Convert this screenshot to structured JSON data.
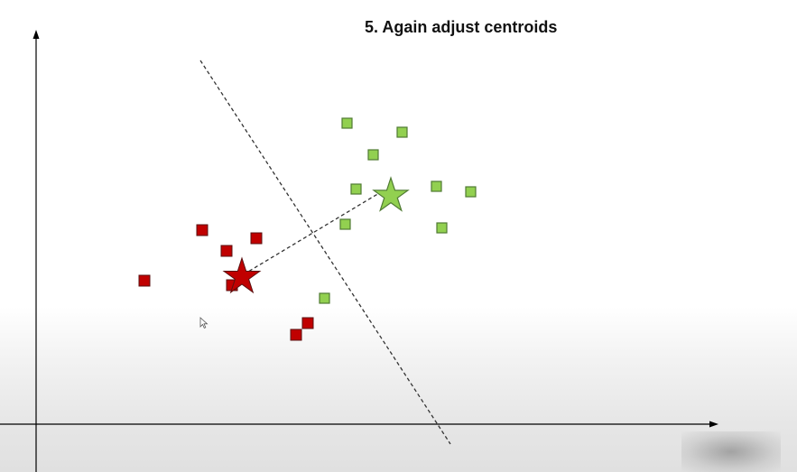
{
  "title": "5. Again adjust centroids",
  "colors": {
    "red_cluster": "#c00000",
    "red_stroke": "#5a1010",
    "green_cluster": "#92d050",
    "green_stroke": "#4f7a33",
    "axis": "#000000",
    "boundary": "#333333"
  },
  "icons": {
    "cursor": "mouse-pointer-icon"
  }
}
